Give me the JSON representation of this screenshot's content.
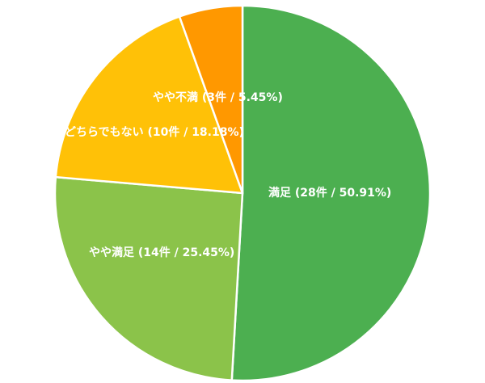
{
  "chart_data": {
    "type": "pie",
    "title": "",
    "start_angle_deg": 0,
    "direction": "clockwise",
    "slices": [
      {
        "name": "満足",
        "count": 28,
        "percent": 50.91,
        "label": "満足 (28件 / 50.91%)",
        "color": "#4caf50"
      },
      {
        "name": "やや満足",
        "count": 14,
        "percent": 25.45,
        "label": "やや満足 (14件 / 25.45%)",
        "color": "#8bc34a"
      },
      {
        "name": "どちらでもない",
        "count": 10,
        "percent": 18.18,
        "label": "どちらでもない (10件 / 18.18%)",
        "color": "#ffc107"
      },
      {
        "name": "やや不満",
        "count": 3,
        "percent": 5.45,
        "label": "やや不満 (3件 / 5.45%)",
        "color": "#ff9800"
      }
    ],
    "slice_border_color": "#ffffff"
  }
}
